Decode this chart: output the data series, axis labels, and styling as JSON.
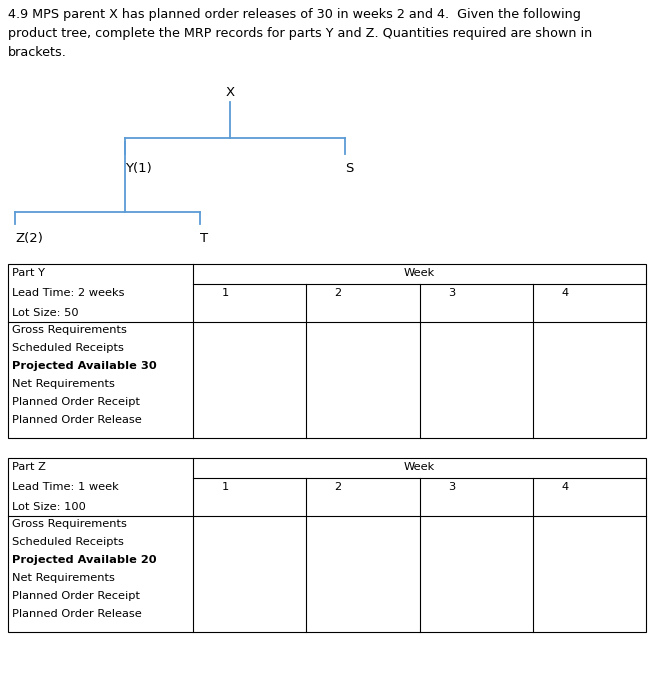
{
  "title_text": "4.9 MPS parent X has planned order releases of 30 in weeks 2 and 4.  Given the following\nproduct tree, complete the MRP records for parts Y and Z. Quantities required are shown in\nbrackets.",
  "background_color": "#ffffff",
  "tree_color": "#5B9BD5",
  "table_Y": {
    "part_label": "Part Y",
    "lead_time": "Lead Time: 2 weeks",
    "lot_size": "Lot Size: 50",
    "rows": [
      "Gross Requirements",
      "Scheduled Receipts",
      "Projected Available 30",
      "Net Requirements",
      "Planned Order Receipt",
      "Planned Order Release"
    ],
    "bold_row": "Projected Available 30",
    "weeks": [
      "1",
      "2",
      "3",
      "4"
    ],
    "week_label": "Week"
  },
  "table_Z": {
    "part_label": "Part Z",
    "lead_time": "Lead Time: 1 week",
    "lot_size": "Lot Size: 100",
    "rows": [
      "Gross Requirements",
      "Scheduled Receipts",
      "Projected Available 20",
      "Net Requirements",
      "Planned Order Receipt",
      "Planned Order Release"
    ],
    "bold_row": "Projected Available 20",
    "weeks": [
      "1",
      "2",
      "3",
      "4"
    ],
    "week_label": "Week"
  },
  "font_size_title": 9.2,
  "font_size_table": 8.2,
  "font_size_node": 9.5
}
